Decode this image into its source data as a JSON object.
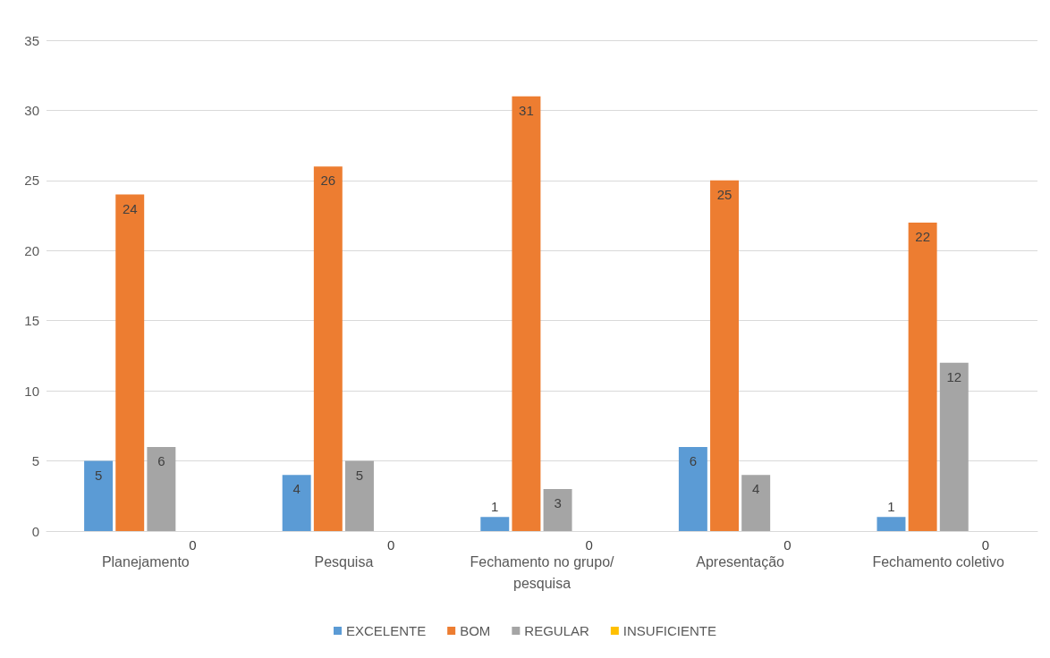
{
  "chart_data": {
    "type": "bar",
    "categories": [
      "Planejamento",
      "Pesquisa",
      "Fechamento no grupo/pesquisa",
      "Apresentação",
      "Fechamento coletivo"
    ],
    "series": [
      {
        "name": "EXCELENTE",
        "color": "#5b9bd5",
        "values": [
          5,
          4,
          1,
          6,
          1
        ]
      },
      {
        "name": "BOM",
        "color": "#ed7d31",
        "values": [
          24,
          26,
          31,
          25,
          22
        ]
      },
      {
        "name": "REGULAR",
        "color": "#a5a5a5",
        "values": [
          6,
          5,
          3,
          4,
          12
        ]
      },
      {
        "name": "INSUFICIENTE",
        "color": "#ffc000",
        "values": [
          0,
          0,
          0,
          0,
          0
        ]
      }
    ],
    "ylim": [
      0,
      35
    ],
    "yticks": [
      0,
      5,
      10,
      15,
      20,
      25,
      30,
      35
    ],
    "grid": "y",
    "legend": "bottom",
    "data_labels": true
  }
}
